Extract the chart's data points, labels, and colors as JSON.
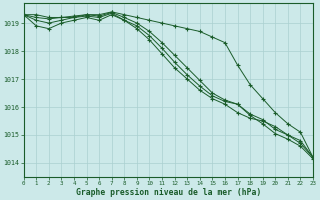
{
  "xlabel": "Graphe pression niveau de la mer (hPa)",
  "xlim": [
    0,
    23
  ],
  "ylim": [
    1013.5,
    1019.7
  ],
  "yticks": [
    1014,
    1015,
    1016,
    1017,
    1018,
    1019
  ],
  "xticks": [
    0,
    1,
    2,
    3,
    4,
    5,
    6,
    7,
    8,
    9,
    10,
    11,
    12,
    13,
    14,
    15,
    16,
    17,
    18,
    19,
    20,
    21,
    22,
    23
  ],
  "background_color": "#cce9e9",
  "grid_color": "#aad0d0",
  "line_color": "#1a5c2a",
  "series": [
    [
      1019.3,
      1019.3,
      1019.2,
      1019.2,
      1019.2,
      1019.3,
      1019.3,
      1019.4,
      1019.3,
      1019.2,
      1019.1,
      1019.0,
      1018.9,
      1018.8,
      1018.7,
      1018.5,
      1018.3,
      1017.5,
      1016.8,
      1016.3,
      1015.8,
      1015.4,
      1015.1,
      1014.2
    ],
    [
      1019.3,
      1018.9,
      1018.8,
      1019.0,
      1019.1,
      1019.2,
      1019.1,
      1019.3,
      1019.1,
      1018.8,
      1018.4,
      1017.9,
      1017.4,
      1017.0,
      1016.6,
      1016.3,
      1016.1,
      1015.8,
      1015.6,
      1015.5,
      1015.3,
      1015.0,
      1014.7,
      1014.2
    ],
    [
      1019.3,
      1019.1,
      1019.0,
      1019.1,
      1019.2,
      1019.25,
      1019.2,
      1019.35,
      1019.1,
      1018.9,
      1018.55,
      1018.1,
      1017.6,
      1017.15,
      1016.75,
      1016.4,
      1016.2,
      1016.1,
      1015.75,
      1015.55,
      1015.2,
      1015.0,
      1014.8,
      1014.2
    ],
    [
      1019.3,
      1019.2,
      1019.15,
      1019.2,
      1019.25,
      1019.3,
      1019.25,
      1019.38,
      1019.2,
      1019.0,
      1018.7,
      1018.3,
      1017.85,
      1017.4,
      1016.95,
      1016.5,
      1016.25,
      1016.1,
      1015.7,
      1015.4,
      1015.05,
      1014.85,
      1014.6,
      1014.15
    ]
  ]
}
